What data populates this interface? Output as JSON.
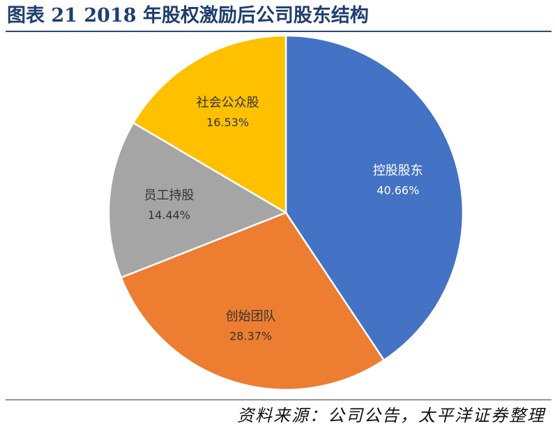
{
  "title": "图表 21 2018 年股权激励后公司股东结构",
  "source": "资料来源：公司公告，太平洋证券整理",
  "chart_data": {
    "type": "pie",
    "title": "",
    "slices": [
      {
        "name": "控股股东",
        "value": 40.66,
        "label": "40.66%",
        "color": "#4472c4",
        "text_color": "#ffffff"
      },
      {
        "name": "创始团队",
        "value": 28.37,
        "label": "28.37%",
        "color": "#ed7d31",
        "text_color": "#333333"
      },
      {
        "name": "员工持股",
        "value": 14.44,
        "label": "14.44%",
        "color": "#a5a5a5",
        "text_color": "#333333"
      },
      {
        "name": "社会公众股",
        "value": 16.53,
        "label": "16.53%",
        "color": "#ffc000",
        "text_color": "#333333"
      }
    ],
    "start_angle": "12 o'clock",
    "direction": "clockwise",
    "legend": "none"
  }
}
